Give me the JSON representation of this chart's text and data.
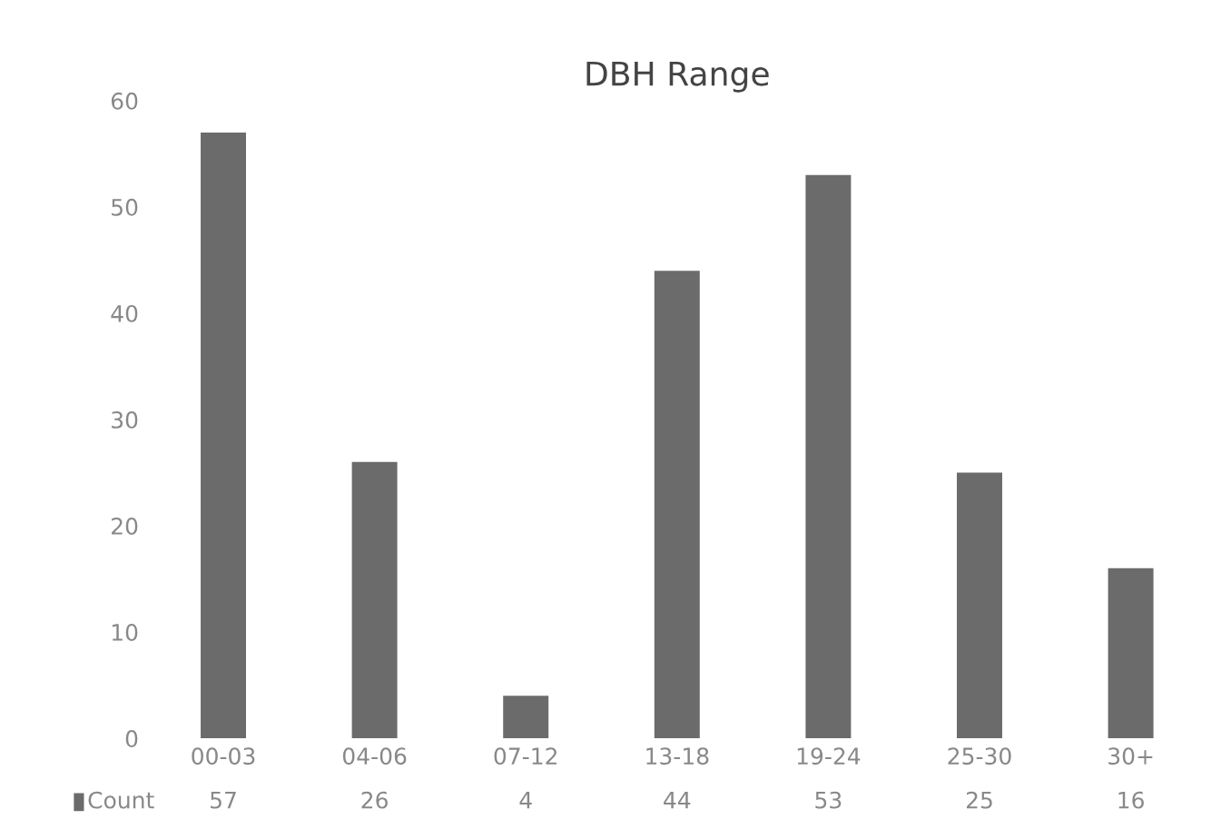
{
  "chart_data": {
    "type": "bar",
    "title": "DBH Range",
    "categories": [
      "00-03",
      "04-06",
      "07-12",
      "13-18",
      "19-24",
      "25-30",
      "30+"
    ],
    "series": [
      {
        "name": "Count",
        "color": "#6b6b6b",
        "values": [
          57,
          26,
          4,
          44,
          53,
          25,
          16
        ]
      }
    ],
    "ylim": [
      0,
      60
    ],
    "yticks": [
      0,
      10,
      20,
      30,
      40,
      50,
      60
    ],
    "grid": false,
    "data_labels": true
  }
}
